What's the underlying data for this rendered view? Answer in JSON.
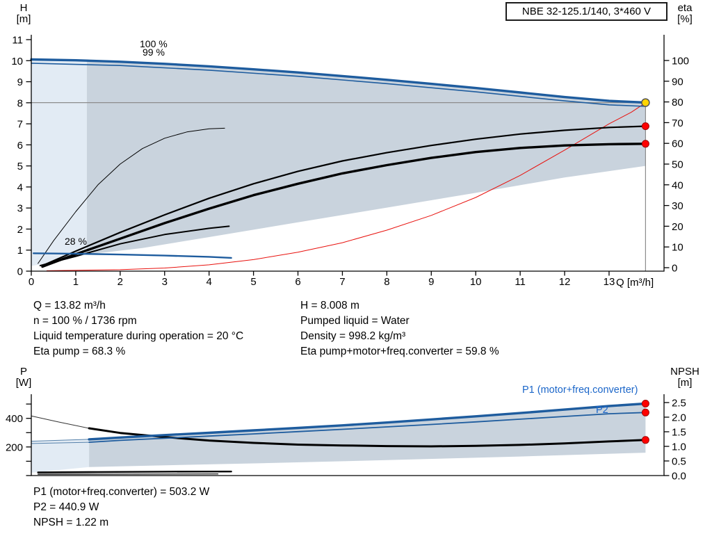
{
  "header": {
    "title": "NBE 32-125.1/140, 3*460 V"
  },
  "colors": {
    "curve_blue": "#1e5c9e",
    "label_blue": "#1b66c9",
    "envelope": "#c9d3dd",
    "envelope_pale": "#e2ebf4",
    "red": "#e8100c",
    "marker_red": "#ff0000",
    "duty_yellow": "#ffd400",
    "duty_line_gray": "#8c8c8c",
    "axis_black": "#000000"
  },
  "top_chart": {
    "y_left_title": [
      "H",
      "[m]"
    ],
    "y_right_title": [
      "eta",
      "[%]"
    ],
    "x_title": "Q [m³/h]",
    "labels": {
      "speed_100": "100 %",
      "speed_99": "99 %",
      "speed_28": "28 %"
    }
  },
  "bottom_chart": {
    "y_left_title": [
      "P",
      "[W]"
    ],
    "y_right_title": [
      "NPSH",
      "[m]"
    ],
    "labels": {
      "p1": "P1 (motor+freq.converter)",
      "p2": "P2"
    }
  },
  "info_top_left": [
    "Q = 13.82 m³/h",
    "n = 100 % / 1736 rpm",
    "Liquid temperature during operation = 20 °C",
    "Eta pump = 68.3 %"
  ],
  "info_top_right": [
    "H = 8.008 m",
    "Pumped liquid = Water",
    "Density = 998.2 kg/m³",
    "Eta pump+motor+freq.converter = 59.8 %"
  ],
  "info_bottom": [
    "P1 (motor+freq.converter) = 503.2 W",
    "P2 = 440.9 W",
    "NPSH = 1.22 m"
  ],
  "chart_data": [
    {
      "type": "line",
      "title": "QH and efficiency curves",
      "xlabel": "Q [m³/h]",
      "ylabel_left": "H [m]",
      "ylabel_right": "eta [%]",
      "xlim": [
        0,
        14.24
      ],
      "ylim_left": [
        0,
        11
      ],
      "ylim_right": [
        0,
        100
      ],
      "x_ticks": [
        0,
        1,
        2,
        3,
        4,
        5,
        6,
        7,
        8,
        9,
        10,
        11,
        12,
        13
      ],
      "h_ticks": [
        0,
        1,
        2,
        3,
        4,
        5,
        6,
        7,
        8,
        9,
        10,
        11
      ],
      "eta_ticks": [
        0,
        10,
        20,
        30,
        40,
        50,
        60,
        70,
        80,
        90,
        100
      ],
      "duty_point": {
        "q": 13.82,
        "h": 8.008,
        "eta_pump": 68.3,
        "eta_total": 59.8
      },
      "envelope_pale": [
        [
          0,
          0.25
        ],
        [
          0,
          10.06
        ],
        [
          1.25,
          10.0
        ],
        [
          1.25,
          0.8
        ],
        [
          0.6,
          0.45
        ]
      ],
      "envelope": [
        [
          1.25,
          0.8
        ],
        [
          1.25,
          10.0
        ],
        [
          2,
          9.95
        ],
        [
          3,
          9.85
        ],
        [
          4,
          9.73
        ],
        [
          5,
          9.59
        ],
        [
          6,
          9.44
        ],
        [
          7,
          9.27
        ],
        [
          8,
          9.09
        ],
        [
          9,
          8.9
        ],
        [
          10,
          8.7
        ],
        [
          11,
          8.49
        ],
        [
          12,
          8.27
        ],
        [
          13,
          8.1
        ],
        [
          13.82,
          8.0
        ],
        [
          13.82,
          5.0
        ],
        [
          12,
          4.45
        ],
        [
          10,
          3.72
        ],
        [
          8,
          3.02
        ],
        [
          6,
          2.32
        ],
        [
          4,
          1.62
        ],
        [
          2.5,
          1.1
        ],
        [
          1.7,
          0.9
        ]
      ],
      "series": [
        {
          "id": "flow-limit-red",
          "axis": "h",
          "color": "#e8100c",
          "width": 1,
          "points": [
            [
              0.35,
              0.02
            ],
            [
              2,
              0.07
            ],
            [
              3,
              0.15
            ],
            [
              4,
              0.3
            ],
            [
              5,
              0.55
            ],
            [
              6,
              0.9
            ],
            [
              7,
              1.35
            ],
            [
              8,
              1.95
            ],
            [
              9,
              2.65
            ],
            [
              10,
              3.5
            ],
            [
              11,
              4.55
            ],
            [
              12,
              5.75
            ],
            [
              13,
              7.0
            ],
            [
              13.5,
              7.55
            ],
            [
              13.82,
              8.0
            ]
          ]
        },
        {
          "id": "eta-28-pump",
          "axis": "eta",
          "color": "#000000",
          "width": 1,
          "points": [
            [
              0.15,
              2
            ],
            [
              0.5,
              13
            ],
            [
              1,
              27
            ],
            [
              1.5,
              40
            ],
            [
              2,
              50
            ],
            [
              2.5,
              57.5
            ],
            [
              3,
              62.5
            ],
            [
              3.5,
              65.5
            ],
            [
              4,
              67
            ],
            [
              4.35,
              67.3
            ]
          ]
        },
        {
          "id": "eta-28-total",
          "axis": "eta",
          "color": "#000000",
          "width": 2,
          "points": [
            [
              0.2,
              1
            ],
            [
              1,
              5.5
            ],
            [
              2,
              11.5
            ],
            [
              3,
              16
            ],
            [
              4,
              19
            ],
            [
              4.45,
              20
            ]
          ]
        },
        {
          "id": "eta-pump",
          "axis": "eta",
          "color": "#000000",
          "width": 2.2,
          "points": [
            [
              0.25,
              1
            ],
            [
              1,
              8
            ],
            [
              2,
              17
            ],
            [
              3,
              25.5
            ],
            [
              4,
              33.5
            ],
            [
              5,
              40.5
            ],
            [
              6,
              46.5
            ],
            [
              7,
              51.5
            ],
            [
              8,
              55.5
            ],
            [
              9,
              59
            ],
            [
              10,
              62
            ],
            [
              11,
              64.5
            ],
            [
              12,
              66.3
            ],
            [
              13,
              67.7
            ],
            [
              13.82,
              68.3
            ]
          ]
        },
        {
          "id": "eta-total",
          "axis": "eta",
          "color": "#000000",
          "width": 3.4,
          "points": [
            [
              0.25,
              0.5
            ],
            [
              1,
              6.5
            ],
            [
              2,
              14
            ],
            [
              3,
              21.5
            ],
            [
              4,
              28.5
            ],
            [
              5,
              35
            ],
            [
              6,
              40.5
            ],
            [
              7,
              45.5
            ],
            [
              8,
              49.5
            ],
            [
              9,
              53
            ],
            [
              10,
              55.8
            ],
            [
              11,
              57.8
            ],
            [
              12,
              59
            ],
            [
              13,
              59.6
            ],
            [
              13.82,
              59.8
            ]
          ]
        },
        {
          "id": "pump-28",
          "axis": "h",
          "color": "#1e5c9e",
          "width": 2.4,
          "points": [
            [
              0.05,
              0.85
            ],
            [
              1,
              0.83
            ],
            [
              2,
              0.79
            ],
            [
              3,
              0.74
            ],
            [
              4,
              0.68
            ],
            [
              4.5,
              0.63
            ]
          ]
        },
        {
          "id": "pump-99",
          "axis": "h",
          "color": "#1e5c9e",
          "width": 1.6,
          "points": [
            [
              0,
              9.88
            ],
            [
              2,
              9.77
            ],
            [
              4,
              9.55
            ],
            [
              6,
              9.26
            ],
            [
              8,
              8.91
            ],
            [
              10,
              8.52
            ],
            [
              12,
              8.09
            ],
            [
              13,
              7.9
            ],
            [
              13.82,
              7.83
            ]
          ]
        },
        {
          "id": "pump-100",
          "axis": "h",
          "color": "#1e5c9e",
          "width": 3.4,
          "points": [
            [
              0,
              10.06
            ],
            [
              1,
              10.02
            ],
            [
              2,
              9.95
            ],
            [
              3,
              9.85
            ],
            [
              4,
              9.73
            ],
            [
              5,
              9.59
            ],
            [
              6,
              9.44
            ],
            [
              7,
              9.27
            ],
            [
              8,
              9.09
            ],
            [
              9,
              8.9
            ],
            [
              10,
              8.7
            ],
            [
              11,
              8.49
            ],
            [
              12,
              8.27
            ],
            [
              13,
              8.09
            ],
            [
              13.82,
              8.01
            ]
          ]
        }
      ],
      "markers": [
        {
          "name": "duty-point",
          "kind": "duty",
          "axis": "h",
          "q": 13.82,
          "v": 8.008
        },
        {
          "name": "eta-pump-point",
          "kind": "red",
          "axis": "eta",
          "q": 13.82,
          "v": 68.3
        },
        {
          "name": "eta-total-point",
          "kind": "red",
          "axis": "eta",
          "q": 13.82,
          "v": 59.8
        }
      ]
    },
    {
      "type": "line",
      "title": "Power and NPSH curves",
      "ylabel_left": "P [W]",
      "ylabel_right": "NPSH [m]",
      "ylim_left": [
        0,
        570
      ],
      "ylim_right": [
        0,
        2.8
      ],
      "p_ticks": [
        0,
        100,
        200,
        300,
        400,
        500
      ],
      "p_tick_labels": [
        200,
        400
      ],
      "npsh_ticks": [
        "0.0",
        "0.5",
        "1.0",
        "1.5",
        "2.0",
        "2.5"
      ],
      "duty_point": {
        "q": 13.82,
        "p1": 503.2,
        "p2": 440.9,
        "npsh": 1.22
      },
      "envelope_pale": [
        [
          0,
          20
        ],
        [
          0,
          240
        ],
        [
          1.3,
          253
        ],
        [
          1.3,
          60
        ]
      ],
      "envelope": [
        [
          1.3,
          60
        ],
        [
          1.3,
          253
        ],
        [
          2,
          266
        ],
        [
          3,
          283
        ],
        [
          4,
          299
        ],
        [
          5,
          316
        ],
        [
          6,
          333
        ],
        [
          7,
          351
        ],
        [
          8,
          371
        ],
        [
          9,
          392
        ],
        [
          10,
          414
        ],
        [
          11,
          437
        ],
        [
          12,
          461
        ],
        [
          13,
          486
        ],
        [
          13.82,
          503
        ],
        [
          13.82,
          160
        ],
        [
          11,
          133
        ],
        [
          8,
          108
        ],
        [
          5,
          85
        ],
        [
          2.5,
          68
        ]
      ],
      "series": [
        {
          "id": "npsh-ext",
          "axis": "npsh",
          "color": "#333333",
          "width": 1,
          "points": [
            [
              0,
              2.04
            ],
            [
              0.6,
              1.84
            ],
            [
              1.3,
              1.62
            ]
          ]
        },
        {
          "id": "p1-ext",
          "axis": "p",
          "color": "#5580aa",
          "width": 1,
          "points": [
            [
              0,
              240
            ],
            [
              1.3,
              253
            ]
          ]
        },
        {
          "id": "p2-ext",
          "axis": "p",
          "color": "#5580aa",
          "width": 1,
          "points": [
            [
              0,
              224
            ],
            [
              1.3,
              233
            ]
          ]
        },
        {
          "id": "p-28-upper",
          "axis": "p",
          "color": "#000000",
          "width": 2.4,
          "points": [
            [
              0.15,
              22
            ],
            [
              1.5,
              25
            ],
            [
              3,
              27
            ],
            [
              4.5,
              28
            ]
          ]
        },
        {
          "id": "p-28-lower",
          "axis": "p",
          "color": "#000000",
          "width": 1.2,
          "points": [
            [
              0.15,
              9
            ],
            [
              4.2,
              11
            ]
          ]
        },
        {
          "id": "npsh",
          "axis": "npsh",
          "color": "#000000",
          "width": 3,
          "points": [
            [
              1.3,
              1.62
            ],
            [
              2,
              1.46
            ],
            [
              3,
              1.32
            ],
            [
              4,
              1.2
            ],
            [
              5,
              1.12
            ],
            [
              6,
              1.06
            ],
            [
              7,
              1.03
            ],
            [
              8,
              1.01
            ],
            [
              9,
              1.0
            ],
            [
              10,
              1.02
            ],
            [
              11,
              1.05
            ],
            [
              12,
              1.1
            ],
            [
              13,
              1.17
            ],
            [
              13.82,
              1.22
            ]
          ]
        },
        {
          "id": "p2",
          "axis": "p",
          "color": "#1e5c9e",
          "width": 1.8,
          "points": [
            [
              1.3,
              233
            ],
            [
              2,
              246
            ],
            [
              3,
              261
            ],
            [
              4,
              276
            ],
            [
              5,
              291
            ],
            [
              6,
              307
            ],
            [
              7,
              323
            ],
            [
              8,
              340
            ],
            [
              9,
              357
            ],
            [
              10,
              375
            ],
            [
              11,
              394
            ],
            [
              12,
              413
            ],
            [
              13,
              432
            ],
            [
              13.82,
              440.9
            ]
          ]
        },
        {
          "id": "p1",
          "axis": "p",
          "color": "#1e5c9e",
          "width": 3.4,
          "points": [
            [
              1.3,
              253
            ],
            [
              2,
              266
            ],
            [
              3,
              283
            ],
            [
              4,
              299
            ],
            [
              5,
              316
            ],
            [
              6,
              333
            ],
            [
              7,
              351
            ],
            [
              8,
              371
            ],
            [
              9,
              392
            ],
            [
              10,
              414
            ],
            [
              11,
              437
            ],
            [
              12,
              461
            ],
            [
              13,
              486
            ],
            [
              13.82,
              503.2
            ]
          ]
        }
      ],
      "markers": [
        {
          "name": "p1-point",
          "kind": "red",
          "axis": "p",
          "q": 13.82,
          "v": 503.2
        },
        {
          "name": "p2-point",
          "kind": "red",
          "axis": "p",
          "q": 13.82,
          "v": 440.9
        },
        {
          "name": "npsh-point",
          "kind": "red",
          "axis": "npsh",
          "q": 13.82,
          "v": 1.22
        }
      ]
    }
  ]
}
